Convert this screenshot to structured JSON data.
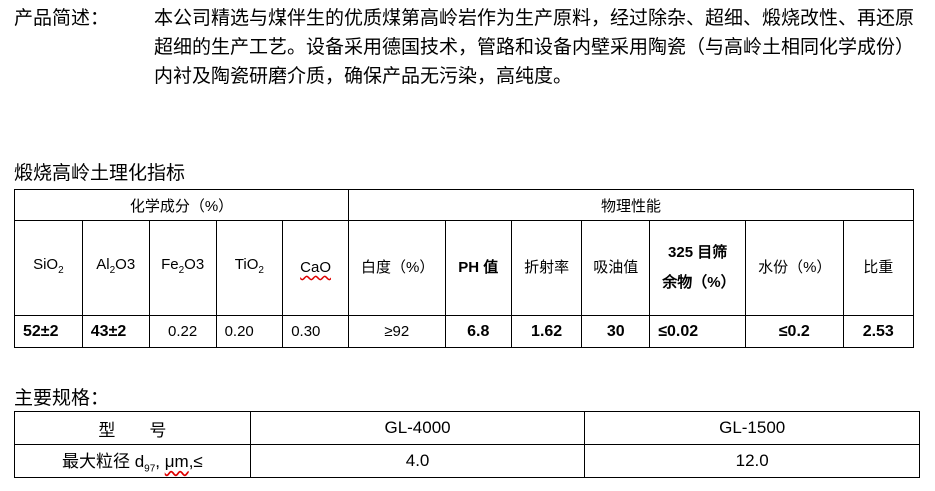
{
  "description": {
    "label": "产品简述：",
    "text": "本公司精选与煤伴生的优质煤第高岭岩作为生产原料，经过除杂、超细、煅烧改性、再还原超细的生产工艺。设备采用德国技术，管路和设备内壁采用陶瓷（与高岭土相同化学成份）内衬及陶瓷研磨介质，确保产品无污染，高纯度。"
  },
  "table1": {
    "title": "煅烧高岭土理化指标",
    "group_chem": "化学成分（%）",
    "group_phys": "物理性能",
    "chem_headers": [
      {
        "base": "SiO",
        "sub": "2",
        "tail": ""
      },
      {
        "base": "Al",
        "sub": "2",
        "tail": "O3"
      },
      {
        "base": "Fe",
        "sub": "2",
        "tail": "O3"
      },
      {
        "base": "TiO",
        "sub": "2",
        "tail": ""
      },
      {
        "base": "CaO",
        "sub": "",
        "tail": ""
      }
    ],
    "phys_headers": [
      "白度（%）",
      "PH 值",
      "折射率",
      "吸油值",
      "325 目筛余物（%）",
      "水份（%）",
      "比重"
    ],
    "values": [
      "52±2",
      "43±2",
      "0.22",
      "0.20",
      "0.30",
      "≥92",
      "6.8",
      "1.62",
      "30",
      "≤0.02",
      "≤0.2",
      "2.53"
    ]
  },
  "table2": {
    "title": "主要规格：",
    "header": [
      "型　　号",
      "GL-4000",
      "GL-1500"
    ],
    "row_label": "最大粒径 d97, μm,≤",
    "row_label_main": "最大粒径 d",
    "row_label_sub": "97",
    "row_label_tail": ", ",
    "row_label_unit": "μm",
    "row_label_end": ",≤",
    "row_values": [
      "4.0",
      "12.0"
    ]
  }
}
